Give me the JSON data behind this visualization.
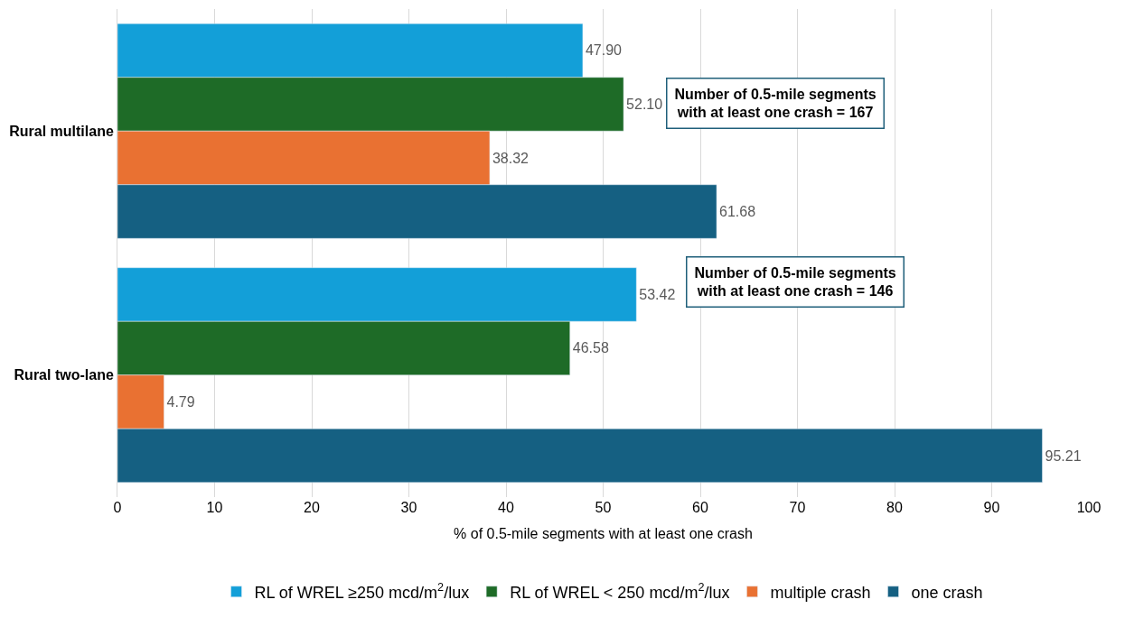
{
  "chart_data": {
    "type": "bar",
    "orientation": "horizontal",
    "xlabel": "% of 0.5-mile segments with at least one crash",
    "categories": [
      "Rural multilane",
      "Rural two-lane"
    ],
    "series": [
      {
        "name": "RL of WREL ≥250 mcd/m$^{2}$/lux",
        "color": "#139fd8",
        "values": [
          47.9,
          53.42
        ],
        "value_labels": [
          "47.90",
          "53.42"
        ]
      },
      {
        "name": "RL of WREL < 250 mcd/m$^{2}$/lux",
        "color": "#1e6b27",
        "values": [
          52.1,
          46.58
        ],
        "value_labels": [
          "52.10",
          "46.58"
        ]
      },
      {
        "name": "multiple crash",
        "color": "#e97132",
        "values": [
          38.32,
          4.79
        ],
        "value_labels": [
          "38.32",
          "4.79"
        ]
      },
      {
        "name": "one crash",
        "color": "#156082",
        "values": [
          61.68,
          95.21
        ],
        "value_labels": [
          "61.68",
          "95.21"
        ]
      }
    ],
    "xlim": [
      0,
      100
    ],
    "xticks": [
      0,
      10,
      20,
      30,
      40,
      50,
      60,
      70,
      80,
      90,
      100
    ],
    "grid": "x",
    "legend": "bottom",
    "annotations": [
      "Number of 0.5-mile segments\nwith at least one crash = 167",
      "Number of 0.5-mile segments\nwith at least one crash = 146"
    ]
  }
}
